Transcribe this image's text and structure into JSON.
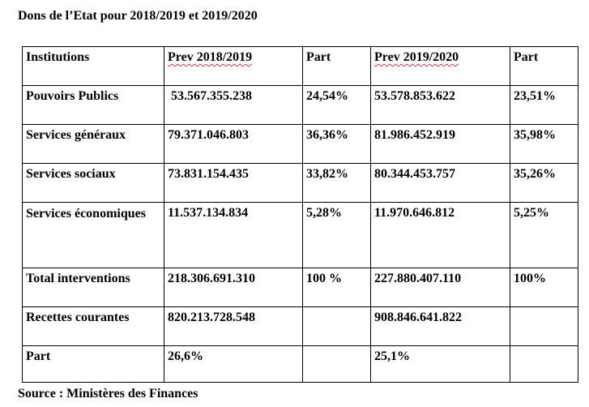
{
  "title": "Dons de l’Etat pour 2018/2019 et 2019/2020",
  "table": {
    "headers": [
      "Institutions",
      "Prev 2018/2019",
      "Part",
      "Prev 2019/2020",
      "Part"
    ],
    "rows": [
      [
        "Pouvoirs Publics",
        "53.567.355.238",
        "24,54%",
        "53.578.853.622",
        "23,51%"
      ],
      [
        "Services généraux",
        "79.371.046.803",
        "36,36%",
        "81.986.452.919",
        "35,98%"
      ],
      [
        "Services sociaux",
        "73.831.154.435",
        "33,82%",
        "80.344.453.757",
        "35,26%"
      ],
      [
        "Services économiques",
        "11.537.134.834",
        "5,28%",
        "11.970.646.812",
        "5,25%"
      ],
      [
        "Total interventions",
        "218.306.691.310",
        "100 %",
        "227.880.407.110",
        "100%"
      ],
      [
        "Recettes courantes",
        "820.213.728.548",
        "",
        "908.846.641.822",
        ""
      ],
      [
        "Part",
        "26,6%",
        "",
        "25,1%",
        ""
      ]
    ]
  },
  "source": "Source : Ministères des Finances"
}
